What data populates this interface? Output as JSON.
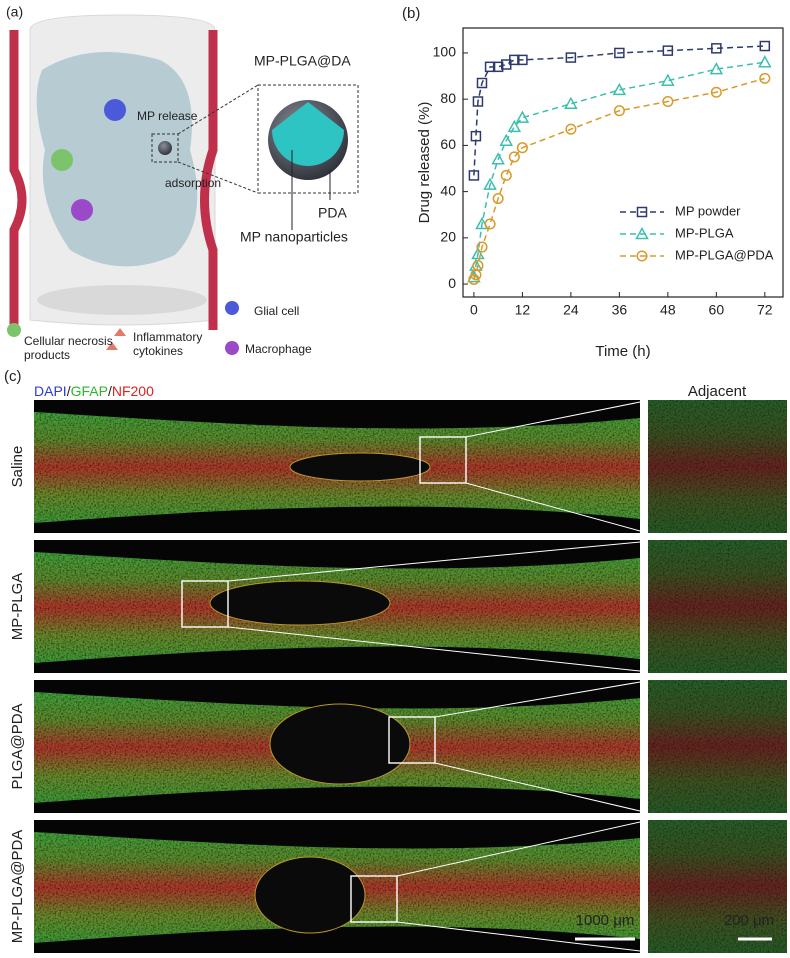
{
  "panel_a": {
    "label": "(a)",
    "mp_release": "MP release",
    "adsorption": "adsorption",
    "particle_title": "MP-PLGA@DA",
    "pda": "PDA",
    "nanoparticles": "MP nanoparticles",
    "glial": "Glial cell",
    "necrosis": [
      "Cellular necrosis",
      "products"
    ],
    "cytokines": [
      "Inflammatory",
      "cytokines"
    ],
    "macrophage": "Macrophage"
  },
  "chart_data": {
    "type": "line",
    "label": "(b)",
    "x_label": "Time (h)",
    "y_label": "Drug released (%)",
    "x": [
      0,
      0.5,
      1,
      2,
      4,
      6,
      8,
      10,
      12,
      24,
      36,
      48,
      60,
      72
    ],
    "series": [
      {
        "name": "MP powder",
        "color": "#2e3a6e",
        "marker": "square",
        "values": [
          47,
          64,
          79,
          87,
          94,
          94,
          95,
          97,
          97,
          98,
          100,
          101,
          102,
          103
        ]
      },
      {
        "name": "MP-PLGA",
        "color": "#3cbfb0",
        "marker": "triangle",
        "values": [
          3,
          8,
          13,
          26,
          43,
          54,
          62,
          68,
          72,
          78,
          84,
          88,
          93,
          96
        ]
      },
      {
        "name": "MP-PLGA@PDA",
        "color": "#d99a2b",
        "marker": "circle",
        "values": [
          2,
          4,
          8,
          16,
          26,
          37,
          47,
          55,
          59,
          67,
          75,
          79,
          83,
          89
        ]
      }
    ],
    "xlim": [
      -2.7,
      76.5
    ],
    "ylim": [
      -5.6,
      110.8
    ],
    "xticks": [
      0,
      12,
      24,
      36,
      48,
      60,
      72
    ],
    "yticks": [
      0,
      20,
      40,
      60,
      80,
      100
    ],
    "legend": "lower right"
  },
  "panel_c": {
    "label": "(c)",
    "stain": [
      {
        "text": "DAPI",
        "color": "#2a3bd6"
      },
      {
        "text": "/",
        "color": "#222222"
      },
      {
        "text": "GFAP",
        "color": "#2db52d"
      },
      {
        "text": "/",
        "color": "#222222"
      },
      {
        "text": "NF200",
        "color": "#e02020"
      }
    ],
    "adjacent": "Adjacent",
    "rows": [
      "Saline",
      "MP-PLGA",
      "PLGA@PDA",
      "MP-PLGA@PDA"
    ],
    "scale_main": "1000 μm",
    "scale_zoom": "200 μm"
  }
}
